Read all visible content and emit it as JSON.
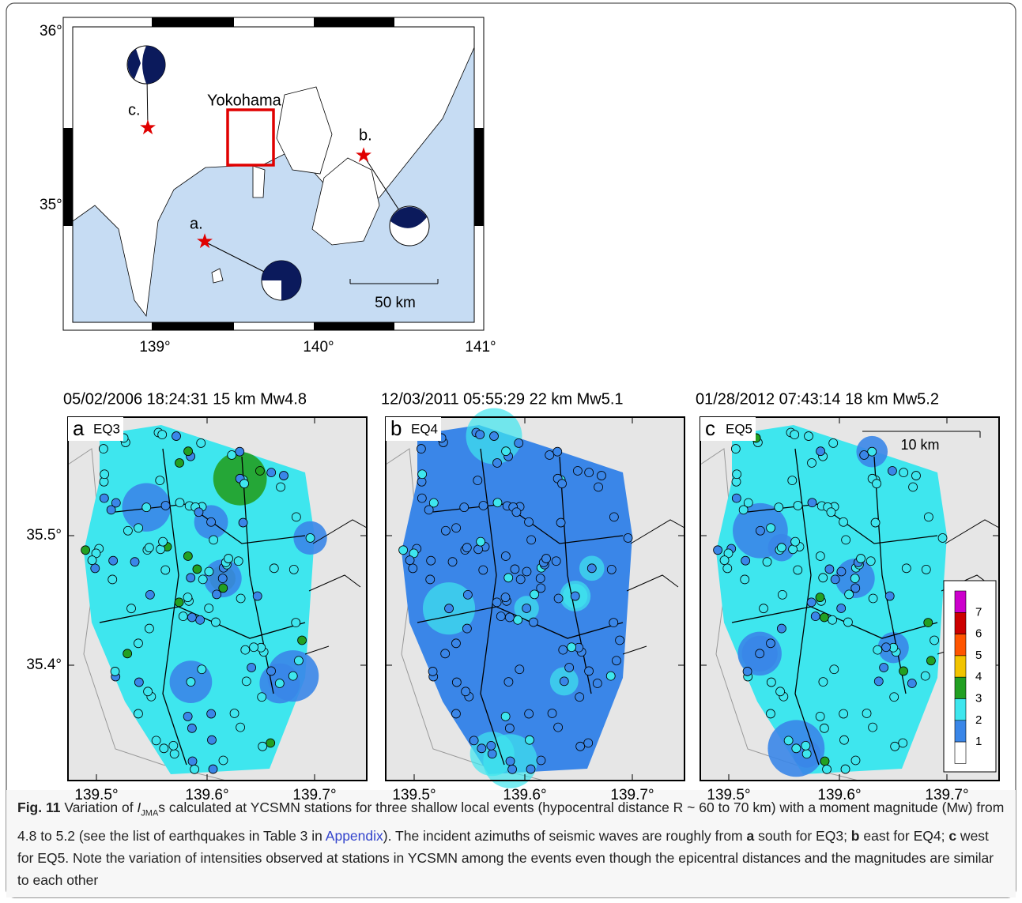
{
  "map": {
    "lat_labels": [
      "36°",
      "35°"
    ],
    "lon_labels": [
      "139°",
      "140°",
      "141°"
    ],
    "city": "Yokohama",
    "events": [
      "a.",
      "b.",
      "c."
    ],
    "scale": "50 km"
  },
  "panels": [
    {
      "title": "05/02/2006 18:24:31 15 km Mw4.8",
      "letter": "a",
      "event": "EQ3"
    },
    {
      "title": "12/03/2011 05:55:29 22 km Mw5.1",
      "letter": "b",
      "event": "EQ4"
    },
    {
      "title": "01/28/2012 07:43:14 18 km Mw5.2",
      "letter": "c",
      "event": "EQ5"
    }
  ],
  "axes": {
    "xticks": [
      "139.5°",
      "139.6°",
      "139.7°"
    ],
    "yticks": [
      "35.5°",
      "35.4°"
    ]
  },
  "scalebar": "10 km",
  "colorscale": {
    "labels": [
      "7",
      "6",
      "5",
      "4",
      "3",
      "2",
      "1"
    ],
    "colors": [
      "#cc00cc",
      "#cc0000",
      "#ff5500",
      "#f2c400",
      "#22a022",
      "#3ee6ee",
      "#3a86e8",
      "#ffffff"
    ]
  },
  "caption": {
    "label": "Fig. 11",
    "parts": [
      " Variation of ",
      "I",
      "JMA",
      "s calculated at YCSMN stations for three shallow local events (hypocentral distance R ~ 60 to 70 km) with a moment magnitude (Mw) from 4.8 to 5.2 (see the list of earthquakes in Table 3 in ",
      "Appendix",
      "). The incident azimuths of seismic waves are roughly from ",
      "a",
      " south for EQ3; ",
      "b",
      " east for EQ4; ",
      "c",
      " west for EQ5. Note the variation of intensities observed at stations in YCSMN among the events even though the epicentral distances and the magnitudes are similar to each other"
    ]
  }
}
